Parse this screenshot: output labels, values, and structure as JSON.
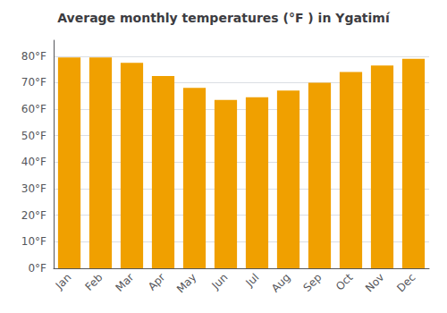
{
  "chart_data": {
    "type": "bar",
    "title": "Average monthly temperatures (°F ) in Ygatimí",
    "categories": [
      "Jan",
      "Feb",
      "Mar",
      "Apr",
      "May",
      "Jun",
      "Jul",
      "Aug",
      "Sep",
      "Oct",
      "Nov",
      "Dec"
    ],
    "values": [
      79.5,
      79.5,
      77.5,
      72.5,
      68.0,
      63.5,
      64.5,
      67.0,
      70.0,
      74.0,
      76.5,
      79.0
    ],
    "color": "#F0A000",
    "ylim": [
      0,
      86
    ],
    "yticks": [
      {
        "value": 0,
        "label": "0°F"
      },
      {
        "value": 10,
        "label": "10°F"
      },
      {
        "value": 20,
        "label": "20°F"
      },
      {
        "value": 30,
        "label": "30°F"
      },
      {
        "value": 40,
        "label": "40°F"
      },
      {
        "value": 50,
        "label": "50°F"
      },
      {
        "value": 60,
        "label": "60°F"
      },
      {
        "value": 70,
        "label": "70°F"
      },
      {
        "value": 80,
        "label": "80°F"
      }
    ],
    "grid": true
  }
}
